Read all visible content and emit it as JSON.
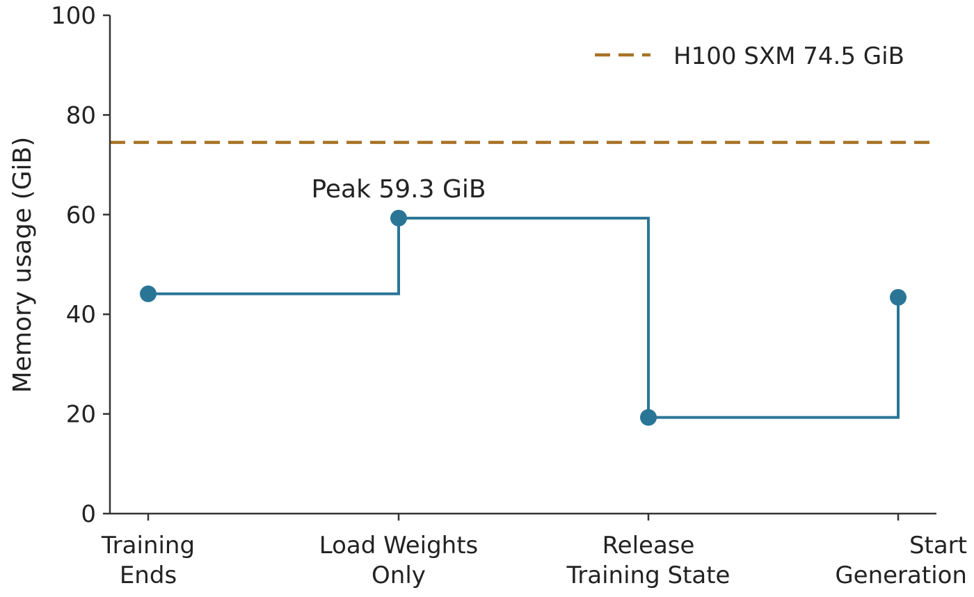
{
  "chart_data": {
    "type": "line",
    "title": "",
    "xlabel": "",
    "ylabel": "Memory usage (GiB)",
    "ylim": [
      0,
      100
    ],
    "yticks": [
      0,
      20,
      40,
      60,
      80,
      100
    ],
    "categories": [
      [
        "Training",
        "Ends"
      ],
      [
        "Load Weights",
        "Only"
      ],
      [
        "Release",
        "Training State"
      ],
      [
        "Start",
        "Generation"
      ]
    ],
    "series": [
      {
        "values": [
          44.1,
          59.3,
          19.3,
          43.4
        ],
        "color": "#2a7596",
        "step": "post"
      }
    ],
    "reference_line": {
      "name": "H100 SXM 74.5 GiB",
      "value": 74.5,
      "color": "#a87327",
      "style": "dashed"
    },
    "annotations": [
      {
        "text": "Peak 59.3 GiB",
        "category_index": 1
      }
    ],
    "legend": {
      "placement": "top-right",
      "entries": [
        "H100 SXM 74.5 GiB"
      ]
    },
    "grid": false
  }
}
